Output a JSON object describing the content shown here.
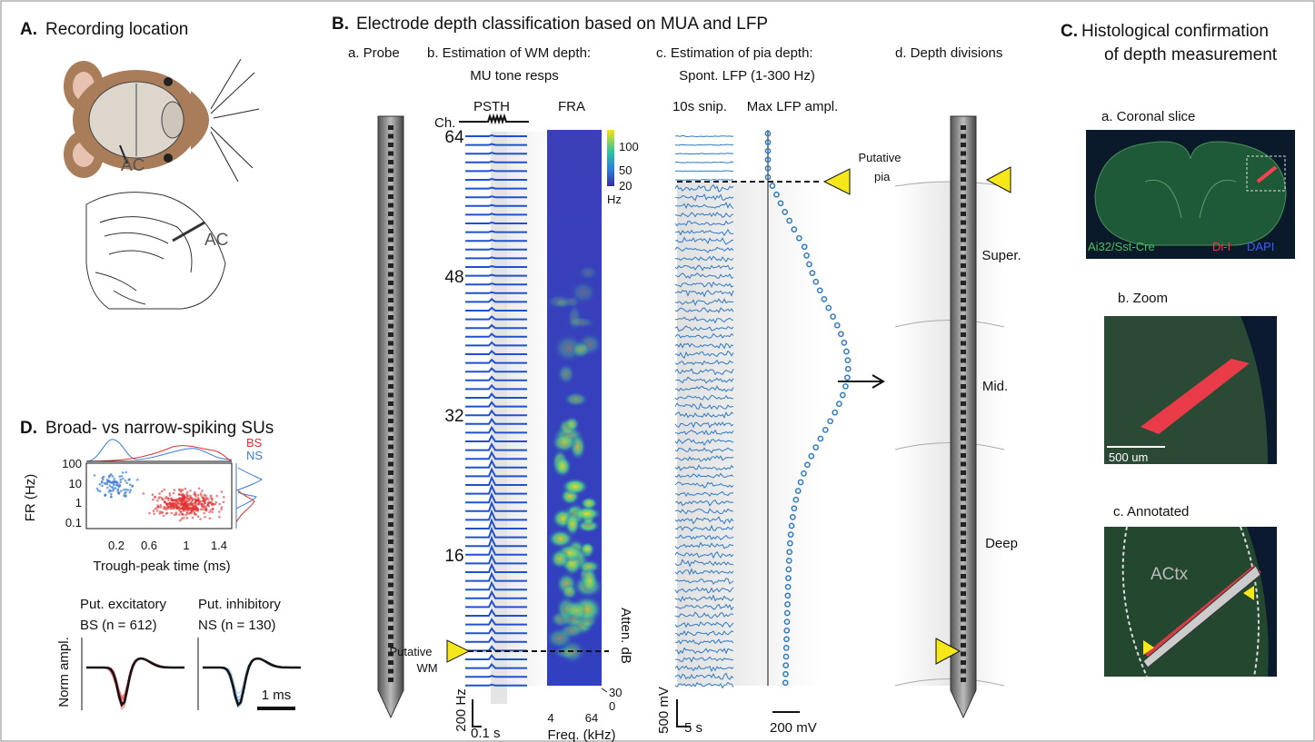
{
  "panel_a": {
    "label": "A.",
    "title": "Recording location",
    "ac_top": "AC",
    "ac_bottom": "AC"
  },
  "panel_b": {
    "label": "B.",
    "title": "Electrode depth classification based on MUA and LFP",
    "sub_a": "a. Probe",
    "sub_b_1": "b. Estimation of WM depth:",
    "sub_b_2": "MU tone resps",
    "sub_c_1": "c. Estimation of pia depth:",
    "sub_c_2": "Spont. LFP (1-300 Hz)",
    "sub_d": "d. Depth divisions",
    "psth": "PSTH",
    "fra": "FRA",
    "ch": "Ch.",
    "channels": [
      "64",
      "48",
      "32",
      "16"
    ],
    "colorbar_ticks": [
      "100",
      "50",
      "20"
    ],
    "colorbar_unit": "Hz",
    "putative_wm": [
      "Putative",
      "WM"
    ],
    "atten": "Atten. dB",
    "atten_ticks": [
      "30",
      "0"
    ],
    "freq_ticks": [
      "4",
      "64"
    ],
    "freq_label": "Freq. (kHz)",
    "scale_hz": "200 Hz",
    "scale_s": "0.1 s",
    "snip": "10s snip.",
    "max_lfp": "Max LFP ampl.",
    "putative_pia": [
      "Putative",
      "pia"
    ],
    "scale_mv": "500 mV",
    "scale_5s": "5 s",
    "scale_200mv": "200 mV",
    "divisions": [
      "Super.",
      "Mid.",
      "Deep"
    ]
  },
  "panel_c": {
    "label": "C.",
    "title": [
      "Histological confirmation",
      "of depth measurement"
    ],
    "a": "a. Coronal slice",
    "legend": [
      "Ai32/Sst-Cre",
      "Di-I",
      "DAPI"
    ],
    "b": "b. Zoom",
    "scale": "500 um",
    "c": "c. Annotated",
    "actx": "ACtx"
  },
  "panel_d": {
    "label": "D.",
    "title": "Broad- vs narrow-spiking SUs",
    "legend": [
      "BS",
      "NS"
    ],
    "ylabel": "FR (Hz)",
    "yticks": [
      "100",
      "10",
      "1",
      "0.1"
    ],
    "xticks": [
      "0.2",
      "0.6",
      "1",
      "1.4"
    ],
    "xlabel": "Trough-peak time (ms)",
    "norm": "Norm ampl.",
    "exc": "Put. excitatory",
    "inh": "Put. inhibitory",
    "bs_n": "BS (n = 612)",
    "ns_n": "NS (n = 130)",
    "scale": "1 ms"
  }
}
